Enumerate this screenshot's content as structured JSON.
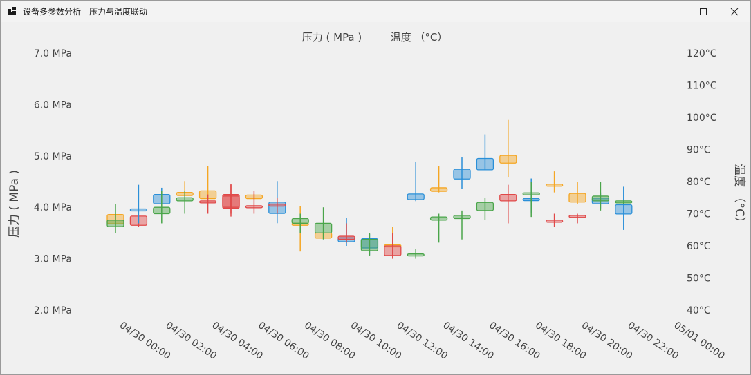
{
  "window": {
    "title": "设备多参数分析 - 压力与温度联动"
  },
  "colors": {
    "orange": "#f5a623",
    "blue": "#2a8fd8",
    "green": "#4aa54a",
    "red": "#e04848"
  },
  "chart_data": {
    "type": "candlestick",
    "legend": [
      "压力 ( MPa )",
      "温度 （°C）"
    ],
    "ylabel_left": "压力 ( MPa )",
    "ylabel_right": "温度 （°C）",
    "y_left": {
      "min": 2.0,
      "max": 7.0,
      "ticks": [
        "2.0 MPa",
        "3.0 MPa",
        "4.0 MPa",
        "5.0 MPa",
        "6.0 MPa",
        "7.0 MPa"
      ]
    },
    "y_right": {
      "min": 40,
      "max": 120,
      "ticks": [
        "40°C",
        "50°C",
        "60°C",
        "70°C",
        "80°C",
        "90°C",
        "100°C",
        "110°C",
        "120°C"
      ]
    },
    "x_ticks": [
      "04/30 00:00",
      "04/30 02:00",
      "04/30 04:00",
      "04/30 06:00",
      "04/30 08:00",
      "04/30 10:00",
      "04/30 12:00",
      "04/30 14:00",
      "04/30 16:00",
      "04/30 18:00",
      "04/30 20:00",
      "04/30 22:00",
      "05/01 00:00"
    ],
    "series": [
      {
        "axis": "left",
        "candles": [
          {
            "i": 0,
            "color": "orange",
            "open": 3.68,
            "close": 3.86,
            "high": 3.86,
            "low": 3.65
          },
          {
            "i": 1,
            "color": "red",
            "open": 3.83,
            "close": 3.65,
            "high": 3.83,
            "low": 3.62
          },
          {
            "i": 2,
            "color": "blue",
            "open": 4.07,
            "close": 4.25,
            "high": 4.38,
            "low": 4.06
          },
          {
            "i": 3,
            "color": "orange",
            "open": 4.23,
            "close": 4.29,
            "high": 4.51,
            "low": 4.21
          },
          {
            "i": 4,
            "color": "orange",
            "open": 4.17,
            "close": 4.32,
            "high": 4.8,
            "low": 4.17
          },
          {
            "i": 5,
            "color": "red",
            "open": 4.22,
            "close": 3.98,
            "high": 4.45,
            "low": 3.82
          },
          {
            "i": 6,
            "color": "orange",
            "open": 4.17,
            "close": 4.24,
            "high": 4.26,
            "low": 4.16
          },
          {
            "i": 7,
            "color": "blue",
            "open": 3.88,
            "close": 4.1,
            "high": 4.51,
            "low": 3.69
          },
          {
            "i": 8,
            "color": "orange",
            "open": 3.65,
            "close": 3.69,
            "high": 4.02,
            "low": 3.14
          },
          {
            "i": 9,
            "color": "orange",
            "open": 3.5,
            "close": 3.4,
            "high": 3.52,
            "low": 3.38
          },
          {
            "i": 10,
            "color": "blue",
            "open": 3.33,
            "close": 3.41,
            "high": 3.79,
            "low": 3.25
          },
          {
            "i": 11,
            "color": "blue",
            "open": 3.21,
            "close": 3.39,
            "high": 3.48,
            "low": 3.07
          },
          {
            "i": 12,
            "color": "orange",
            "open": 3.24,
            "close": 3.27,
            "high": 3.62,
            "low": 3.22
          },
          {
            "i": 13,
            "color": "blue",
            "open": 4.15,
            "close": 4.26,
            "high": 4.89,
            "low": 4.12
          },
          {
            "i": 14,
            "color": "orange",
            "open": 4.31,
            "close": 4.38,
            "high": 4.8,
            "low": 4.29
          },
          {
            "i": 15,
            "color": "blue",
            "open": 4.55,
            "close": 4.74,
            "high": 4.97,
            "low": 4.36
          },
          {
            "i": 16,
            "color": "blue",
            "open": 4.73,
            "close": 4.95,
            "high": 5.42,
            "low": 4.73
          },
          {
            "i": 17,
            "color": "orange",
            "open": 4.86,
            "close": 5.01,
            "high": 5.7,
            "low": 4.58
          },
          {
            "i": 18,
            "color": "blue",
            "open": 4.15,
            "close": 4.17,
            "high": 4.56,
            "low": 3.89
          },
          {
            "i": 19,
            "color": "orange",
            "open": 4.42,
            "close": 4.45,
            "high": 4.7,
            "low": 4.29
          },
          {
            "i": 20,
            "color": "orange",
            "open": 4.1,
            "close": 4.27,
            "high": 4.49,
            "low": 4.07
          },
          {
            "i": 21,
            "color": "blue",
            "open": 4.07,
            "close": 4.18,
            "high": 4.29,
            "low": 3.98
          },
          {
            "i": 22,
            "color": "blue",
            "open": 3.87,
            "close": 4.05,
            "high": 4.4,
            "low": 3.56
          }
        ]
      },
      {
        "axis": "right",
        "candles": [
          {
            "i": 0,
            "color": "green",
            "open": 66,
            "close": 68,
            "high": 73,
            "low": 64
          },
          {
            "i": 1,
            "color": "blue",
            "open": 71,
            "close": 71.5,
            "high": 79,
            "low": 67
          },
          {
            "i": 2,
            "color": "green",
            "open": 70,
            "close": 72,
            "high": 77,
            "low": 67
          },
          {
            "i": 3,
            "color": "green",
            "open": 74,
            "close": 75,
            "high": 77,
            "low": 70
          },
          {
            "i": 4,
            "color": "red",
            "open": 73.5,
            "close": 74,
            "high": 76,
            "low": 70
          },
          {
            "i": 5,
            "color": "red",
            "open": 72,
            "close": 76,
            "high": 79,
            "low": 70
          },
          {
            "i": 6,
            "color": "red",
            "open": 72,
            "close": 72.5,
            "high": 77,
            "low": 70
          },
          {
            "i": 7,
            "color": "red",
            "open": 72.5,
            "close": 73,
            "high": 75,
            "low": 70
          },
          {
            "i": 8,
            "color": "green",
            "open": 67,
            "close": 68.5,
            "high": 70,
            "low": 64
          },
          {
            "i": 9,
            "color": "green",
            "open": 64,
            "close": 67,
            "high": 72,
            "low": 62
          },
          {
            "i": 10,
            "color": "red",
            "open": 62,
            "close": 63,
            "high": 67,
            "low": 61
          },
          {
            "i": 11,
            "color": "green",
            "open": 58.5,
            "close": 62,
            "high": 64,
            "low": 57
          },
          {
            "i": 12,
            "color": "red",
            "open": 57,
            "close": 60,
            "high": 64,
            "low": 56
          },
          {
            "i": 13,
            "color": "green",
            "open": 57,
            "close": 57.5,
            "high": 59,
            "low": 56
          },
          {
            "i": 14,
            "color": "green",
            "open": 68,
            "close": 69,
            "high": 70,
            "low": 61
          },
          {
            "i": 15,
            "color": "green",
            "open": 68.5,
            "close": 69.5,
            "high": 71,
            "low": 62
          },
          {
            "i": 16,
            "color": "green",
            "open": 71,
            "close": 73.5,
            "high": 75,
            "low": 68
          },
          {
            "i": 17,
            "color": "red",
            "open": 74,
            "close": 76,
            "high": 79,
            "low": 67
          },
          {
            "i": 18,
            "color": "green",
            "open": 76,
            "close": 76.5,
            "high": 80,
            "low": 69
          },
          {
            "i": 19,
            "color": "red",
            "open": 67.5,
            "close": 68,
            "high": 70,
            "low": 66
          },
          {
            "i": 20,
            "color": "red",
            "open": 69,
            "close": 69.5,
            "high": 70,
            "low": 67
          },
          {
            "i": 21,
            "color": "green",
            "open": 74,
            "close": 75.5,
            "high": 80,
            "low": 71
          },
          {
            "i": 22,
            "color": "green",
            "open": 73.5,
            "close": 74,
            "high": 74,
            "low": 73
          }
        ]
      }
    ]
  }
}
